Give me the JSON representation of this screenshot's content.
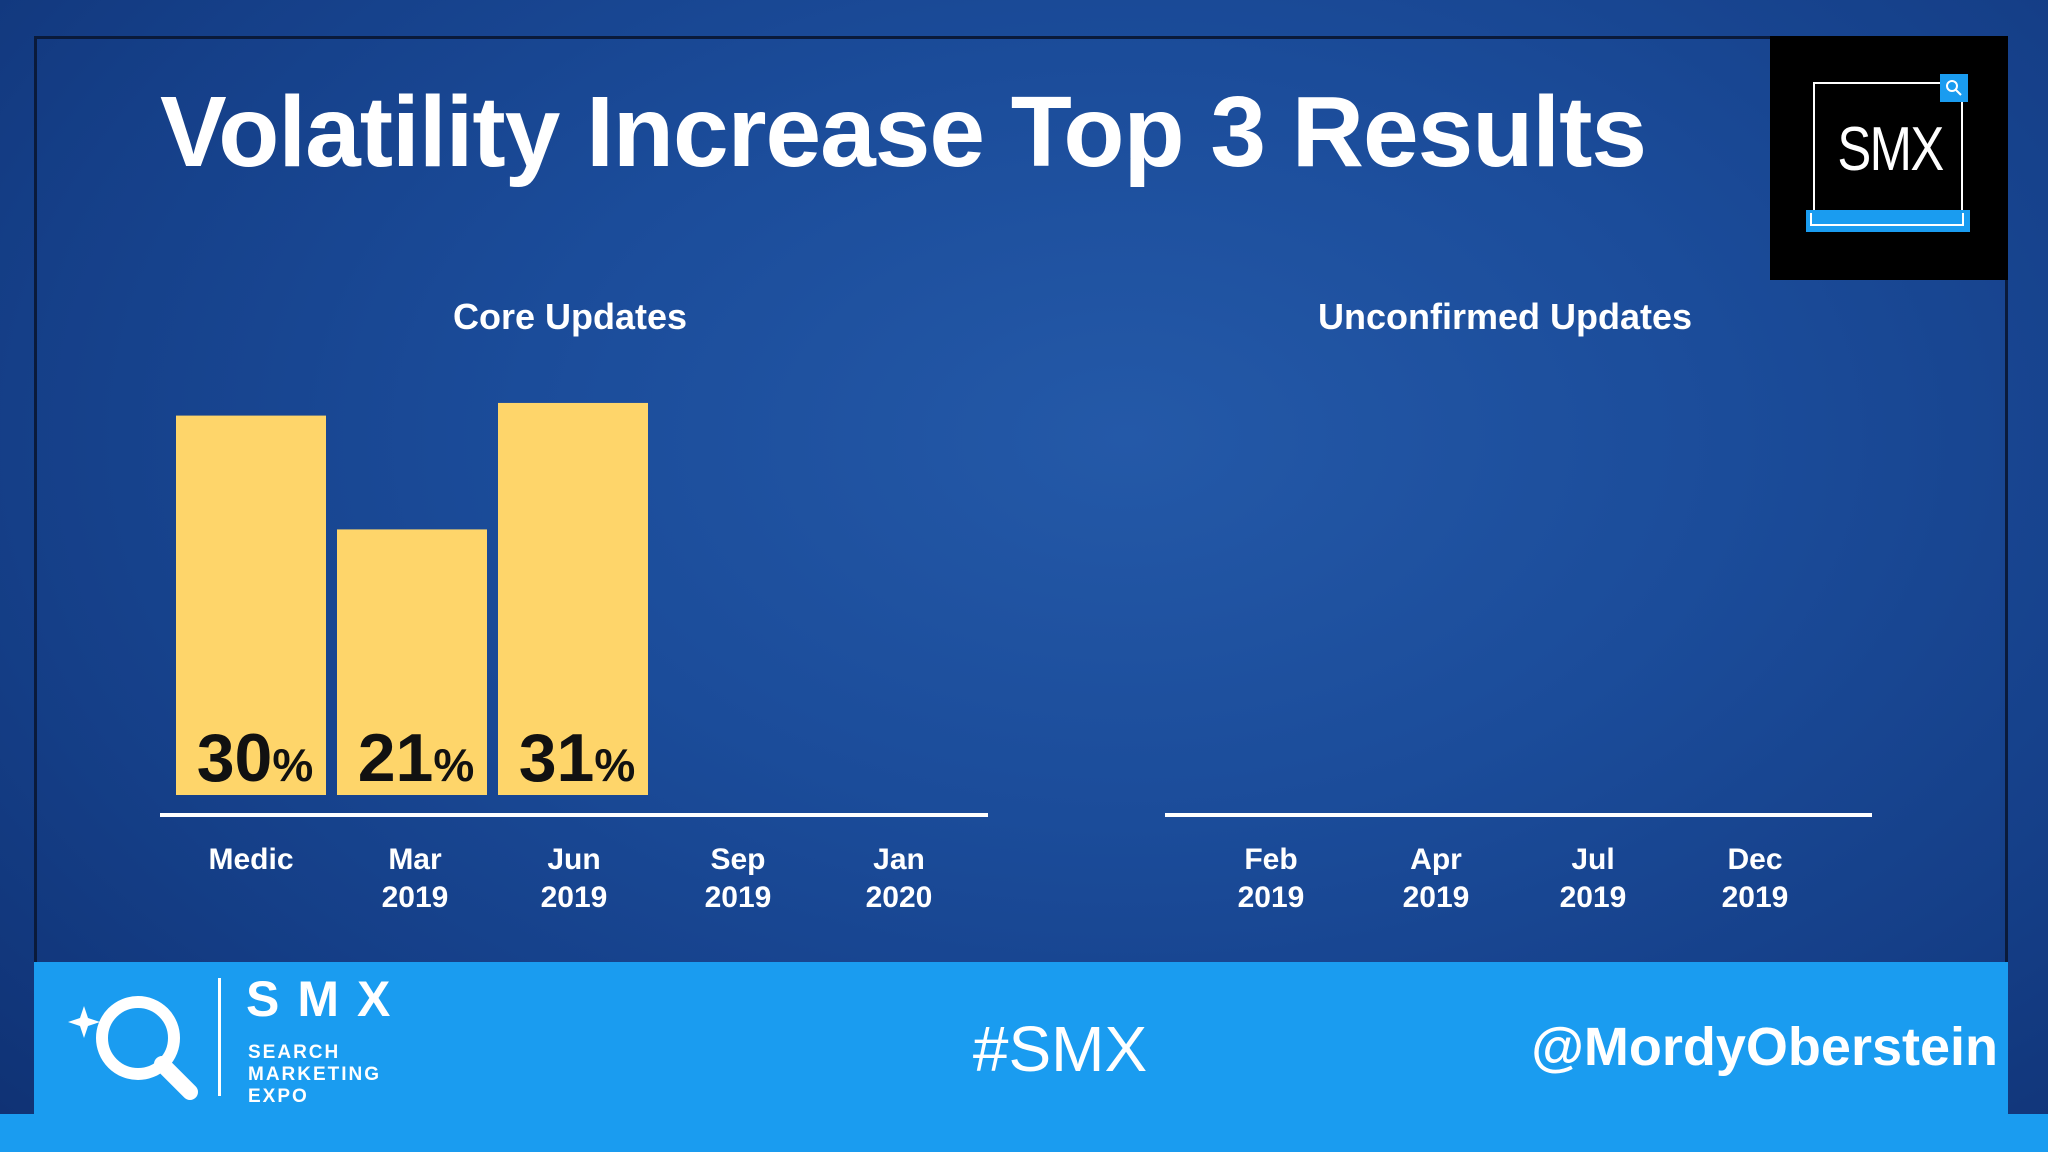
{
  "slide": {
    "title": "Volatility Increase Top 3 Results",
    "logo_text": "SMX"
  },
  "footer": {
    "brand": "SMX",
    "brand_sub": [
      "SEARCH",
      "MARKETING",
      "EXPO"
    ],
    "hashtag": "#SMX",
    "handle": "@MordyOberstein"
  },
  "colors": {
    "bar": "#fed56a",
    "accent": "#1a9cf0",
    "text": "#ffffff"
  },
  "chart_data": [
    {
      "type": "bar",
      "title": "Core Updates",
      "categories": [
        [
          "Medic"
        ],
        [
          "Mar",
          "2019"
        ],
        [
          "Jun",
          "2019"
        ],
        [
          "Sep",
          "2019"
        ],
        [
          "Jan",
          "2020"
        ]
      ],
      "values": [
        30,
        21,
        31,
        null,
        null
      ],
      "value_suffix": "%",
      "ylim": [
        0,
        34
      ],
      "grid": false,
      "legend": "none"
    },
    {
      "type": "bar",
      "title": "Unconfirmed Updates",
      "categories": [
        [
          "Feb",
          "2019"
        ],
        [
          "Apr",
          "2019"
        ],
        [
          "Jul",
          "2019"
        ],
        [
          "Dec",
          "2019"
        ]
      ],
      "values": [
        null,
        null,
        null,
        null
      ],
      "value_suffix": "%",
      "ylim": [
        0,
        34
      ],
      "grid": false,
      "legend": "none"
    }
  ]
}
